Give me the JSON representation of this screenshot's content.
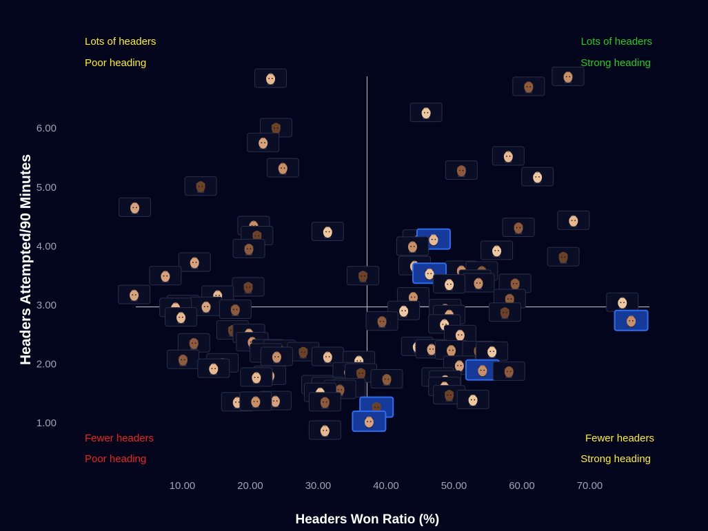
{
  "colors": {
    "background": "#03051c",
    "axis_line": "#c8cad3",
    "tick_text": "#9ea3b5",
    "chip_border": "#2b2f45",
    "chip_fill": "#0a0d26",
    "highlight_fill": "#153a9a",
    "highlight_border": "#2f6df0",
    "yellow": "#ffee22",
    "green": "#22cc22",
    "red": "#ee2222"
  },
  "quadrant_labels": {
    "top_left": {
      "line1": "Lots of headers",
      "line2": "Poor heading",
      "color": "#ffee22"
    },
    "top_right": {
      "line1": "Lots of headers",
      "line2": "Strong heading",
      "color": "#22cc22"
    },
    "bottom_left": {
      "line1": "Fewer headers",
      "line2": "Poor heading",
      "color": "#ee2222"
    },
    "bottom_right": {
      "line1": "Fewer headers",
      "line2": "Strong heading",
      "color": "#ffee22"
    }
  },
  "chart_data": {
    "type": "scatter",
    "title": "",
    "xlabel": "Headers Won Ratio (%)",
    "ylabel": "Headers Attempted/90 Minutes",
    "xlim": [
      0,
      78
    ],
    "ylim": [
      0.6,
      6.9
    ],
    "x_ticks": [
      "10.00",
      "20.00",
      "30.00",
      "40.00",
      "50.00",
      "60.00",
      "70.00"
    ],
    "x_tick_values": [
      10,
      20,
      30,
      40,
      50,
      60,
      70
    ],
    "y_ticks": [
      "1.00",
      "2.00",
      "3.00",
      "4.00",
      "5.00",
      "6.00"
    ],
    "y_tick_values": [
      1,
      2,
      3,
      4,
      5,
      6
    ],
    "average_lines": {
      "x": 37.2,
      "y": 2.97
    },
    "marker": "player headshot",
    "points": [
      {
        "x": 23.0,
        "y": 6.85,
        "highlight": false
      },
      {
        "x": 66.8,
        "y": 6.88,
        "highlight": false
      },
      {
        "x": 61.0,
        "y": 6.71,
        "highlight": false
      },
      {
        "x": 45.9,
        "y": 6.27,
        "highlight": false
      },
      {
        "x": 23.8,
        "y": 6.01,
        "highlight": false
      },
      {
        "x": 21.9,
        "y": 5.76,
        "highlight": false
      },
      {
        "x": 58.0,
        "y": 5.53,
        "highlight": false
      },
      {
        "x": 24.8,
        "y": 5.33,
        "highlight": false
      },
      {
        "x": 51.1,
        "y": 5.29,
        "highlight": false
      },
      {
        "x": 62.3,
        "y": 5.18,
        "highlight": false
      },
      {
        "x": 12.7,
        "y": 5.02,
        "highlight": false
      },
      {
        "x": 3.0,
        "y": 4.66,
        "highlight": false
      },
      {
        "x": 67.6,
        "y": 4.44,
        "highlight": false
      },
      {
        "x": 20.5,
        "y": 4.35,
        "highlight": false
      },
      {
        "x": 59.5,
        "y": 4.32,
        "highlight": false
      },
      {
        "x": 31.4,
        "y": 4.25,
        "highlight": false
      },
      {
        "x": 21.0,
        "y": 4.18,
        "highlight": false
      },
      {
        "x": 44.8,
        "y": 4.12,
        "highlight": false
      },
      {
        "x": 47.0,
        "y": 4.12,
        "highlight": true
      },
      {
        "x": 43.9,
        "y": 4.0,
        "highlight": false
      },
      {
        "x": 19.8,
        "y": 3.96,
        "highlight": false
      },
      {
        "x": 56.3,
        "y": 3.93,
        "highlight": false
      },
      {
        "x": 66.1,
        "y": 3.82,
        "highlight": false
      },
      {
        "x": 11.8,
        "y": 3.73,
        "highlight": false
      },
      {
        "x": 44.2,
        "y": 3.67,
        "highlight": false
      },
      {
        "x": 51.1,
        "y": 3.59,
        "highlight": false
      },
      {
        "x": 54.1,
        "y": 3.58,
        "highlight": false
      },
      {
        "x": 46.4,
        "y": 3.54,
        "highlight": true
      },
      {
        "x": 36.6,
        "y": 3.5,
        "highlight": false
      },
      {
        "x": 7.5,
        "y": 3.5,
        "highlight": false
      },
      {
        "x": 53.1,
        "y": 3.44,
        "highlight": false
      },
      {
        "x": 53.6,
        "y": 3.38,
        "highlight": false
      },
      {
        "x": 59.0,
        "y": 3.37,
        "highlight": false
      },
      {
        "x": 49.3,
        "y": 3.36,
        "highlight": false
      },
      {
        "x": 19.7,
        "y": 3.31,
        "highlight": false
      },
      {
        "x": 2.9,
        "y": 3.18,
        "highlight": false
      },
      {
        "x": 15.2,
        "y": 3.17,
        "highlight": false
      },
      {
        "x": 44.0,
        "y": 3.14,
        "highlight": false
      },
      {
        "x": 58.2,
        "y": 3.11,
        "highlight": false
      },
      {
        "x": 74.8,
        "y": 3.05,
        "highlight": false
      },
      {
        "x": 10.1,
        "y": 3.01,
        "highlight": false
      },
      {
        "x": 13.5,
        "y": 2.98,
        "highlight": false
      },
      {
        "x": 9.0,
        "y": 2.96,
        "highlight": false
      },
      {
        "x": 48.7,
        "y": 2.94,
        "highlight": false
      },
      {
        "x": 17.8,
        "y": 2.93,
        "highlight": false
      },
      {
        "x": 42.6,
        "y": 2.91,
        "highlight": false
      },
      {
        "x": 57.5,
        "y": 2.88,
        "highlight": false
      },
      {
        "x": 49.3,
        "y": 2.84,
        "highlight": false
      },
      {
        "x": 9.8,
        "y": 2.8,
        "highlight": false
      },
      {
        "x": 76.1,
        "y": 2.74,
        "highlight": true
      },
      {
        "x": 39.4,
        "y": 2.73,
        "highlight": false
      },
      {
        "x": 48.6,
        "y": 2.68,
        "highlight": false
      },
      {
        "x": 17.4,
        "y": 2.58,
        "highlight": false
      },
      {
        "x": 19.8,
        "y": 2.52,
        "highlight": false
      },
      {
        "x": 50.9,
        "y": 2.5,
        "highlight": false
      },
      {
        "x": 20.3,
        "y": 2.38,
        "highlight": false
      },
      {
        "x": 11.7,
        "y": 2.36,
        "highlight": false
      },
      {
        "x": 44.6,
        "y": 2.3,
        "highlight": false
      },
      {
        "x": 22.6,
        "y": 2.26,
        "highlight": false
      },
      {
        "x": 46.7,
        "y": 2.26,
        "highlight": false
      },
      {
        "x": 24.3,
        "y": 2.25,
        "highlight": false
      },
      {
        "x": 49.6,
        "y": 2.24,
        "highlight": false
      },
      {
        "x": 53.6,
        "y": 2.23,
        "highlight": false
      },
      {
        "x": 55.6,
        "y": 2.22,
        "highlight": false
      },
      {
        "x": 27.8,
        "y": 2.21,
        "highlight": false
      },
      {
        "x": 22.3,
        "y": 2.19,
        "highlight": false
      },
      {
        "x": 31.4,
        "y": 2.13,
        "highlight": false
      },
      {
        "x": 23.9,
        "y": 2.13,
        "highlight": false
      },
      {
        "x": 10.1,
        "y": 2.08,
        "highlight": false
      },
      {
        "x": 36.0,
        "y": 2.06,
        "highlight": false
      },
      {
        "x": 15.9,
        "y": 2.02,
        "highlight": false
      },
      {
        "x": 50.8,
        "y": 1.98,
        "highlight": false
      },
      {
        "x": 14.6,
        "y": 1.93,
        "highlight": false
      },
      {
        "x": 54.2,
        "y": 1.9,
        "highlight": true
      },
      {
        "x": 58.1,
        "y": 1.88,
        "highlight": false
      },
      {
        "x": 34.5,
        "y": 1.87,
        "highlight": false
      },
      {
        "x": 36.3,
        "y": 1.85,
        "highlight": false
      },
      {
        "x": 22.9,
        "y": 1.81,
        "highlight": false
      },
      {
        "x": 20.9,
        "y": 1.78,
        "highlight": false
      },
      {
        "x": 47.6,
        "y": 1.78,
        "highlight": false
      },
      {
        "x": 40.1,
        "y": 1.75,
        "highlight": false
      },
      {
        "x": 48.7,
        "y": 1.73,
        "highlight": false
      },
      {
        "x": 29.9,
        "y": 1.65,
        "highlight": false
      },
      {
        "x": 31.4,
        "y": 1.62,
        "highlight": false
      },
      {
        "x": 48.6,
        "y": 1.62,
        "highlight": false
      },
      {
        "x": 34.6,
        "y": 1.6,
        "highlight": false
      },
      {
        "x": 33.2,
        "y": 1.57,
        "highlight": false
      },
      {
        "x": 30.3,
        "y": 1.52,
        "highlight": false
      },
      {
        "x": 49.3,
        "y": 1.48,
        "highlight": false
      },
      {
        "x": 23.7,
        "y": 1.38,
        "highlight": false
      },
      {
        "x": 18.1,
        "y": 1.36,
        "highlight": false
      },
      {
        "x": 20.8,
        "y": 1.37,
        "highlight": false
      },
      {
        "x": 31.0,
        "y": 1.36,
        "highlight": false
      },
      {
        "x": 52.8,
        "y": 1.4,
        "highlight": false
      },
      {
        "x": 38.6,
        "y": 1.27,
        "highlight": true
      },
      {
        "x": 37.5,
        "y": 1.03,
        "highlight": true
      },
      {
        "x": 31.0,
        "y": 0.88,
        "highlight": false
      }
    ]
  }
}
